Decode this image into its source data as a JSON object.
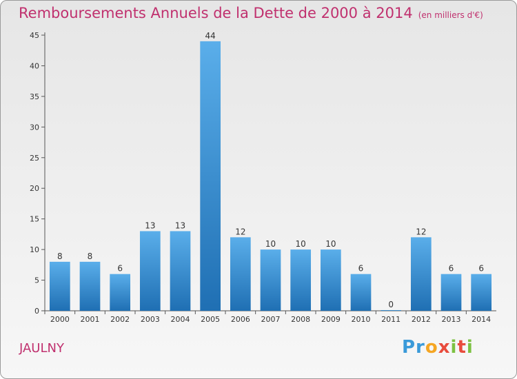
{
  "chart_data": {
    "type": "bar",
    "title": "Remboursements Annuels de la Dette de 2000 à 2014",
    "unit": "(en milliers d'€)",
    "categories": [
      "2000",
      "2001",
      "2002",
      "2003",
      "2004",
      "2005",
      "2006",
      "2007",
      "2008",
      "2009",
      "2010",
      "2011",
      "2012",
      "2013",
      "2014"
    ],
    "values": [
      8,
      8,
      6,
      13,
      13,
      44,
      12,
      10,
      10,
      10,
      6,
      0,
      12,
      6,
      6
    ],
    "ylim": [
      0,
      45
    ],
    "yticks": [
      0,
      5,
      10,
      15,
      20,
      25,
      30,
      35,
      40,
      45
    ],
    "grid": false,
    "bar_color": "#3d9ae0",
    "bar_color_dark": "#1f6fb3"
  },
  "footer": {
    "commune": "JAULNY",
    "logo": [
      "Pr",
      "o",
      "x",
      "i",
      "t",
      "i"
    ]
  },
  "colors": {
    "accent": "#c0306e"
  }
}
